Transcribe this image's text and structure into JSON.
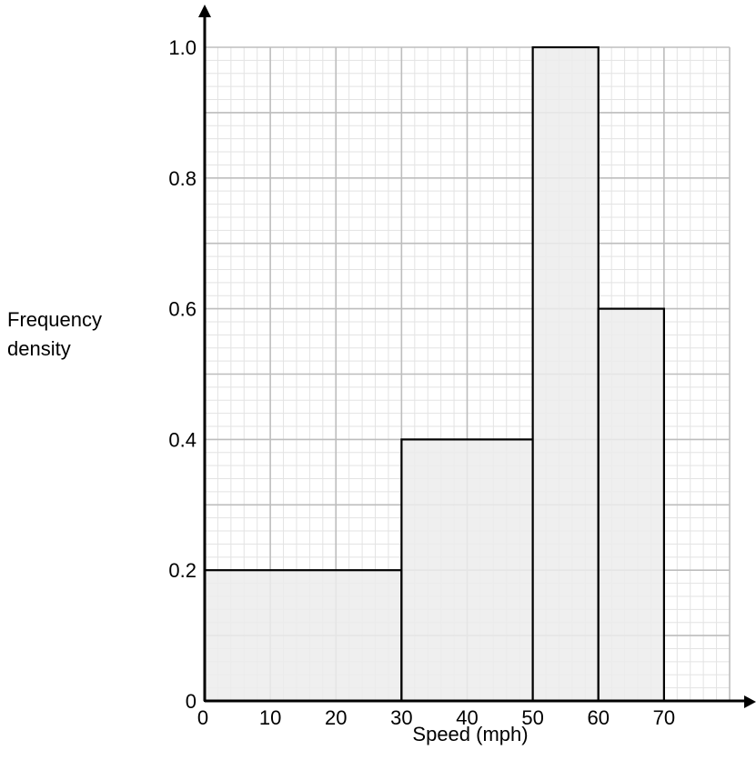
{
  "chart_data": {
    "type": "bar",
    "subtype": "histogram",
    "xlabel": "Speed (mph)",
    "ylabel_lines": [
      "Frequency",
      "density"
    ],
    "bins": [
      {
        "from": 0,
        "to": 30,
        "frequency_density": 0.2
      },
      {
        "from": 30,
        "to": 50,
        "frequency_density": 0.4
      },
      {
        "from": 50,
        "to": 60,
        "frequency_density": 1.0
      },
      {
        "from": 60,
        "to": 70,
        "frequency_density": 0.6
      }
    ],
    "x_ticks": [
      "0",
      "10",
      "20",
      "30",
      "40",
      "50",
      "60",
      "70"
    ],
    "y_ticks": [
      "0",
      "0.2",
      "0.4",
      "0.6",
      "0.8",
      "1.0"
    ],
    "xlim": [
      0,
      80
    ],
    "ylim": [
      0,
      1.0
    ],
    "grid": true,
    "bar_fill": "#ececec",
    "bar_stroke": "#000000",
    "grid_major_color": "#bdbdbd",
    "grid_minor_color": "#e3e3e3"
  }
}
